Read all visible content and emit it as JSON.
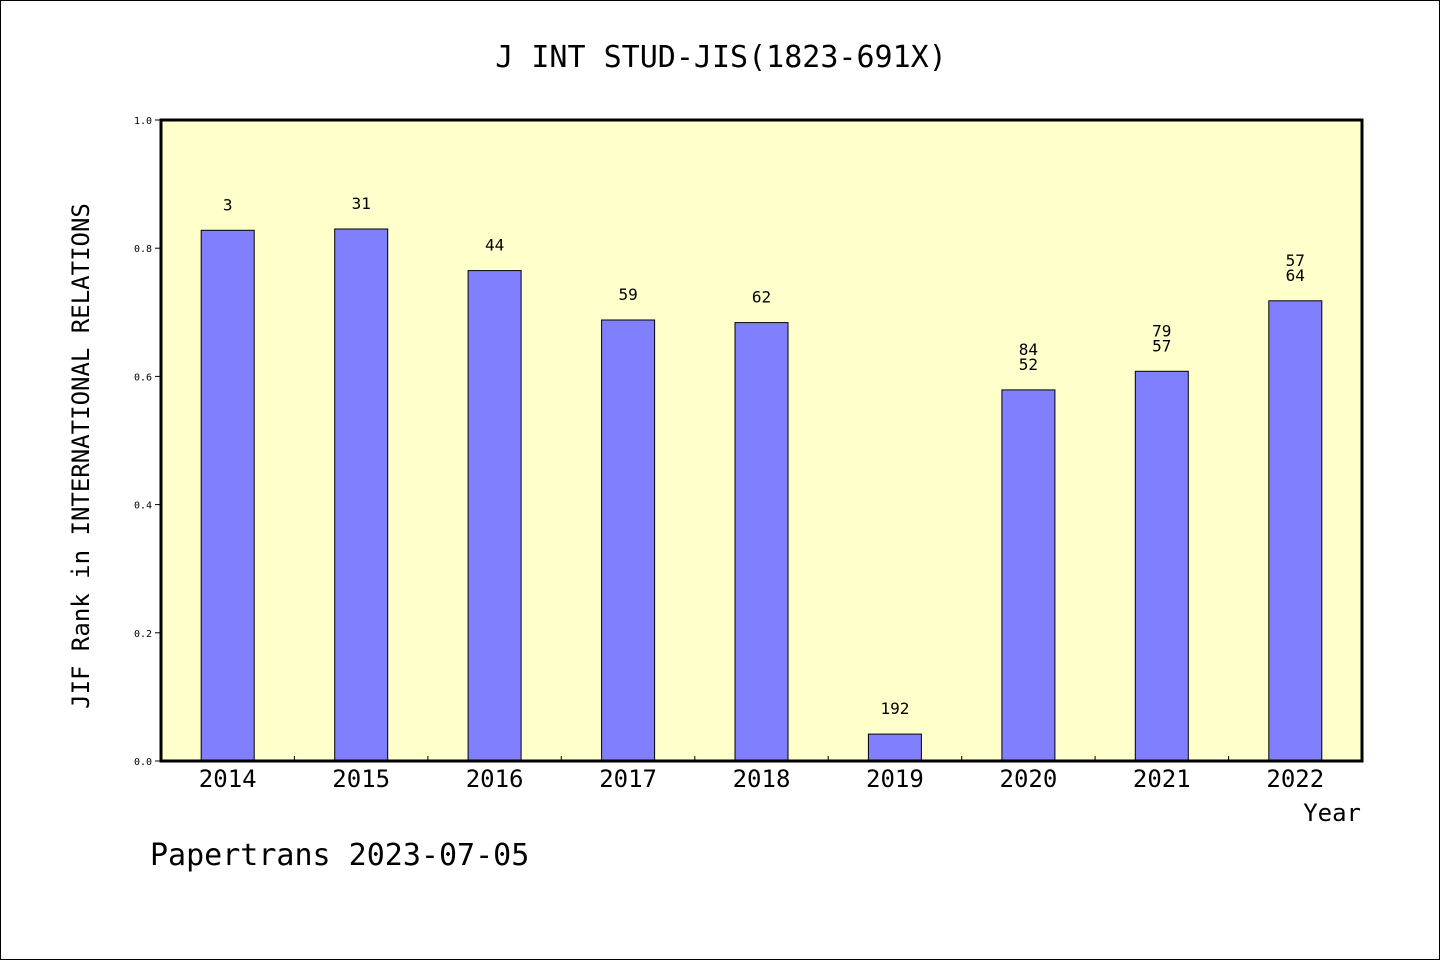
{
  "chart_data": {
    "type": "bar",
    "title": "J INT STUD-JIS(1823-691X)",
    "xlabel": "Year",
    "ylabel": "JIF Rank in INTERNATIONAL RELATIONS",
    "categories": [
      "2014",
      "2015",
      "2016",
      "2017",
      "2018",
      "2019",
      "2020",
      "2021",
      "2022"
    ],
    "values": [
      0.828,
      0.83,
      0.765,
      0.688,
      0.684,
      0.042,
      0.579,
      0.608,
      0.718
    ],
    "bar_labels": [
      [
        "3"
      ],
      [
        "31"
      ],
      [
        "44"
      ],
      [
        "59"
      ],
      [
        "62"
      ],
      [
        "192"
      ],
      [
        "84",
        "52"
      ],
      [
        "79",
        "57"
      ],
      [
        "57",
        "64"
      ]
    ],
    "ylim": [
      0,
      1.0
    ],
    "yticks": [
      "0.0",
      "0.2",
      "0.4",
      "0.6",
      "0.8",
      "1.0"
    ],
    "grid": false,
    "colors": {
      "bar": "#8080ff",
      "plot_background": "#ffffcc",
      "edge": "#000000"
    }
  },
  "footer": {
    "text": "Papertrans 2023-07-05"
  }
}
